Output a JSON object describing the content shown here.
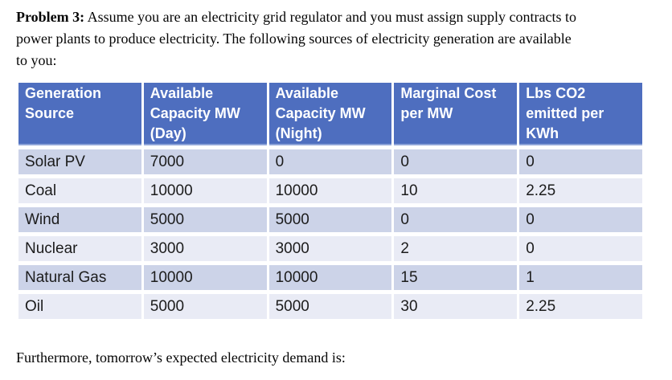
{
  "paragraph": {
    "label": "Problem 3:",
    "lines": [
      " Assume you are an electricity grid regulator and you must assign supply contracts to",
      "power plants to produce electricity. The following sources of electricity generation are available",
      "to you:"
    ]
  },
  "table": {
    "headers": [
      "Generation Source",
      "Available Capacity MW (Day)",
      "Available Capacity MW (Night)",
      "Marginal Cost per MW",
      "Lbs CO2 emitted per KWh"
    ],
    "rows": [
      [
        "Solar PV",
        "7000",
        "0",
        "0",
        "0"
      ],
      [
        "Coal",
        "10000",
        "10000",
        "10",
        "2.25"
      ],
      [
        "Wind",
        "5000",
        "5000",
        "0",
        "0"
      ],
      [
        "Nuclear",
        "3000",
        "3000",
        "2",
        "0"
      ],
      [
        "Natural Gas",
        "10000",
        "10000",
        "15",
        "1"
      ],
      [
        "Oil",
        "5000",
        "5000",
        "30",
        "2.25"
      ]
    ]
  },
  "footer": {
    "text": "Furthermore, tomorrow’s expected electricity demand is:"
  },
  "colors": {
    "header_bg": "#4e6ebf",
    "header_border": "#8ea4d8",
    "row_band_dark": "#ccd3e8",
    "row_band_light": "#e9ebf5",
    "header_text": "#ffffff",
    "body_text": "#1c1c1c"
  }
}
